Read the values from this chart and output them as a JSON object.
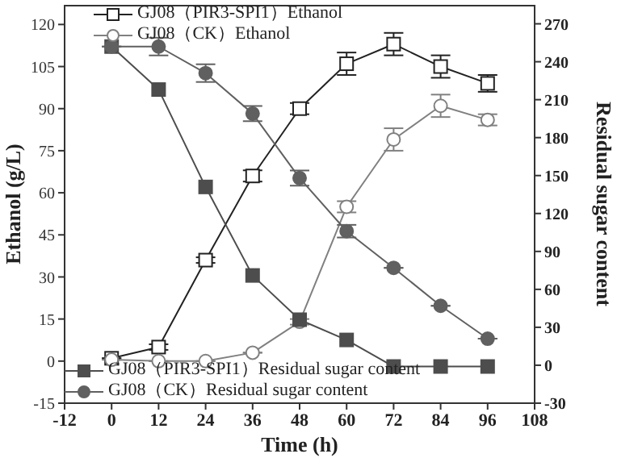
{
  "chart_data": {
    "type": "line",
    "xlabel": "Time (h)",
    "ylabel": "Ethanol (g/L)",
    "y2label": "Residual sugar content",
    "x": [
      0,
      12,
      24,
      36,
      48,
      60,
      72,
      84,
      96
    ],
    "xlim": [
      -12,
      108
    ],
    "xticks": [
      -12,
      0,
      12,
      24,
      36,
      48,
      60,
      72,
      84,
      96,
      108
    ],
    "ylim": [
      -15,
      127
    ],
    "yticks": [
      -15,
      0,
      15,
      30,
      45,
      60,
      75,
      90,
      105,
      120
    ],
    "y2lim": [
      -30,
      285
    ],
    "y2ticks": [
      -30,
      0,
      30,
      60,
      90,
      120,
      150,
      180,
      210,
      240,
      270
    ],
    "legend": "top",
    "series": [
      {
        "name": "GJ08（PIR3-SPI1）Ethanol",
        "color": "#222222",
        "marker": "square",
        "values": [
          1,
          5,
          36,
          66,
          90,
          106,
          113,
          105,
          99
        ],
        "errors": [
          null,
          1,
          1,
          2,
          2,
          4,
          4,
          4,
          3
        ]
      },
      {
        "name": "GJ08（CK）Ethanol",
        "color": "#808080",
        "marker": "circle",
        "values": [
          0.5,
          0,
          0,
          3,
          14,
          55,
          79,
          91,
          86
        ],
        "errors": [
          null,
          null,
          null,
          null,
          1,
          2,
          4,
          4,
          2
        ]
      },
      {
        "name": "GJ08（PIR3-SPI1）Residual sugar content",
        "color": "#4d4d4d",
        "marker": "square",
        "axis": "y2",
        "values": [
          252,
          218,
          141,
          71,
          36,
          20,
          -1,
          -1,
          -1
        ]
      },
      {
        "name": "GJ08（CK）Residual sugar content",
        "color": "#606060",
        "marker": "circle",
        "axis": "y2",
        "values": [
          252,
          252,
          231,
          199,
          148,
          106,
          77,
          47,
          21
        ],
        "errors": [
          null,
          7,
          7,
          6,
          6,
          5,
          null,
          null,
          null
        ]
      }
    ]
  }
}
